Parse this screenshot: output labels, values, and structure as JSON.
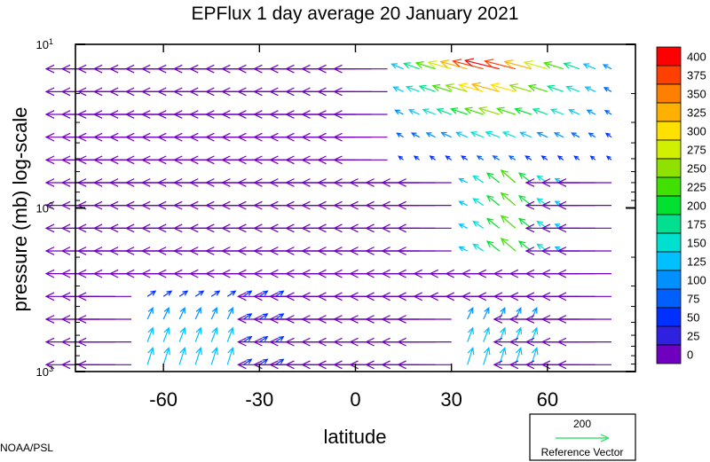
{
  "chart_data": {
    "type": "vector-field",
    "title": "EPFlux  1 day average  20 January   2021",
    "xlabel": "latitude",
    "ylabel": "pressure (mb)  log-scale",
    "x_ticks": [
      -60,
      -30,
      0,
      30,
      60
    ],
    "x_range": [
      -87.5,
      87.5
    ],
    "y_scale": "log",
    "y_range_mb": [
      1000,
      10
    ],
    "y_tick_labels": [
      {
        "base": "10",
        "exp": "1",
        "value": 10
      },
      {
        "base": "10",
        "exp": "2",
        "value": 100
      },
      {
        "base": "10",
        "exp": "3",
        "value": 1000
      }
    ],
    "colorbar": {
      "labels": [
        "400",
        "375",
        "350",
        "325",
        "300",
        "275",
        "250",
        "225",
        "200",
        "175",
        "150",
        "125",
        "100",
        "75",
        "50",
        "25",
        "0"
      ],
      "colors": [
        "#ff0000",
        "#ff4000",
        "#ff8000",
        "#ffb000",
        "#ffe000",
        "#d0f000",
        "#90e000",
        "#40e000",
        "#00e030",
        "#00e090",
        "#00e0d0",
        "#00c0ff",
        "#0090ff",
        "#0060ff",
        "#0030ff",
        "#3020e0",
        "#7000c0"
      ]
    },
    "reference_vector": {
      "value": "200",
      "label": "Reference Vector"
    },
    "credit": "NOAA/PSL"
  }
}
